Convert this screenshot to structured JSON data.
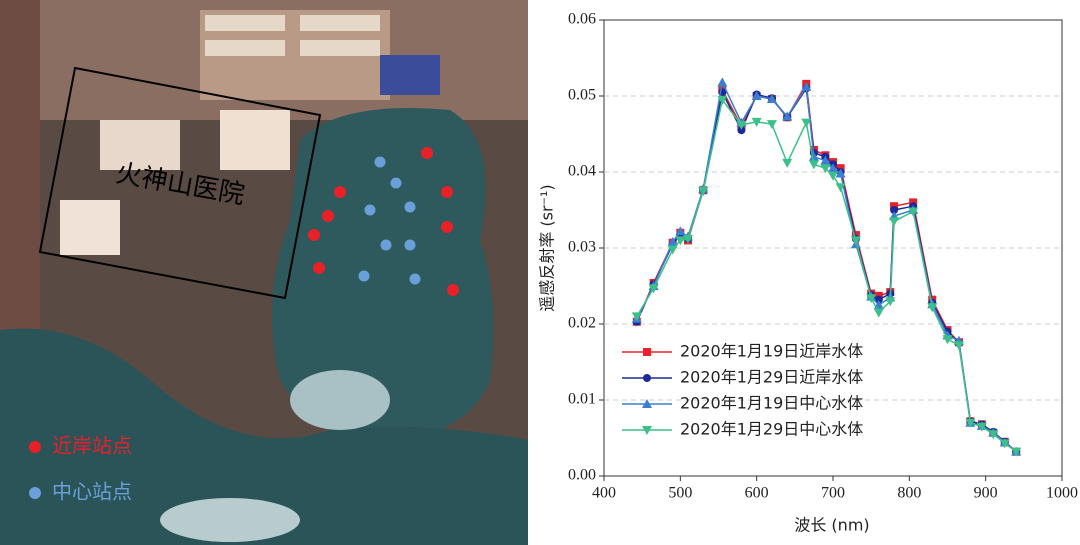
{
  "map_image": {
    "label": "火神山医院",
    "legend": [
      "近岸站点",
      "中心站点"
    ]
  },
  "chart_data": {
    "type": "line",
    "x_label": "波长 (nm)",
    "y_label": "遥感反射率 (sr⁻¹)",
    "x": [
      443,
      465,
      490,
      500,
      510,
      530,
      555,
      580,
      600,
      620,
      640,
      665,
      675,
      690,
      700,
      710,
      730,
      750,
      760,
      775,
      780,
      805,
      830,
      850,
      865,
      880,
      895,
      910,
      925,
      940
    ],
    "series": [
      {
        "name": "2020年1月19日近岸水体",
        "color": "#e8202a",
        "marker": "square",
        "values": [
          0.0203,
          0.0254,
          0.0307,
          0.032,
          0.031,
          0.0376,
          0.0508,
          0.046,
          0.05,
          0.0496,
          0.0472,
          0.0516,
          0.0429,
          0.0422,
          0.0413,
          0.0405,
          0.0317,
          0.024,
          0.0237,
          0.0242,
          0.0355,
          0.036,
          0.0232,
          0.0192,
          0.0176,
          0.0072,
          0.0068,
          0.0057,
          0.0045,
          0.0032
        ]
      },
      {
        "name": "2020年1月29日近岸水体",
        "color": "#1a2a9a",
        "marker": "circle",
        "values": [
          0.0203,
          0.0252,
          0.0305,
          0.0318,
          0.0312,
          0.0376,
          0.0505,
          0.0455,
          0.0502,
          0.0497,
          0.0472,
          0.051,
          0.0425,
          0.042,
          0.041,
          0.04,
          0.0312,
          0.0238,
          0.0232,
          0.024,
          0.035,
          0.0355,
          0.0228,
          0.019,
          0.0175,
          0.0072,
          0.0068,
          0.0058,
          0.0045,
          0.0032
        ]
      },
      {
        "name": "2020年1月19日中心水体",
        "color": "#3a7fd0",
        "marker": "triangle-up",
        "values": [
          0.0207,
          0.025,
          0.0308,
          0.0322,
          0.0315,
          0.0378,
          0.0518,
          0.0465,
          0.05,
          0.0496,
          0.0473,
          0.0512,
          0.042,
          0.0415,
          0.0405,
          0.0398,
          0.0305,
          0.0236,
          0.0225,
          0.0235,
          0.0342,
          0.035,
          0.0226,
          0.0185,
          0.0178,
          0.007,
          0.0066,
          0.0057,
          0.0044,
          0.0032
        ]
      },
      {
        "name": "2020年1月29日中心水体",
        "color": "#3cc08a",
        "marker": "triangle-down",
        "values": [
          0.021,
          0.0247,
          0.0298,
          0.031,
          0.0312,
          0.0375,
          0.0495,
          0.0462,
          0.0466,
          0.0463,
          0.0412,
          0.0465,
          0.041,
          0.0405,
          0.0395,
          0.038,
          0.031,
          0.0234,
          0.0215,
          0.023,
          0.0335,
          0.0348,
          0.0222,
          0.018,
          0.0172,
          0.007,
          0.0065,
          0.0055,
          0.0043,
          0.0032
        ]
      }
    ],
    "xlim": [
      400,
      1000
    ],
    "xticks": [
      400,
      500,
      600,
      700,
      800,
      900,
      1000
    ],
    "ylim": [
      0,
      0.06
    ],
    "yticks": [
      {
        "value": 0,
        "label": "0.00"
      },
      0.01,
      0.02,
      0.03,
      0.04,
      0.05,
      0.06
    ],
    "grid": true,
    "legend": "lower-left"
  }
}
